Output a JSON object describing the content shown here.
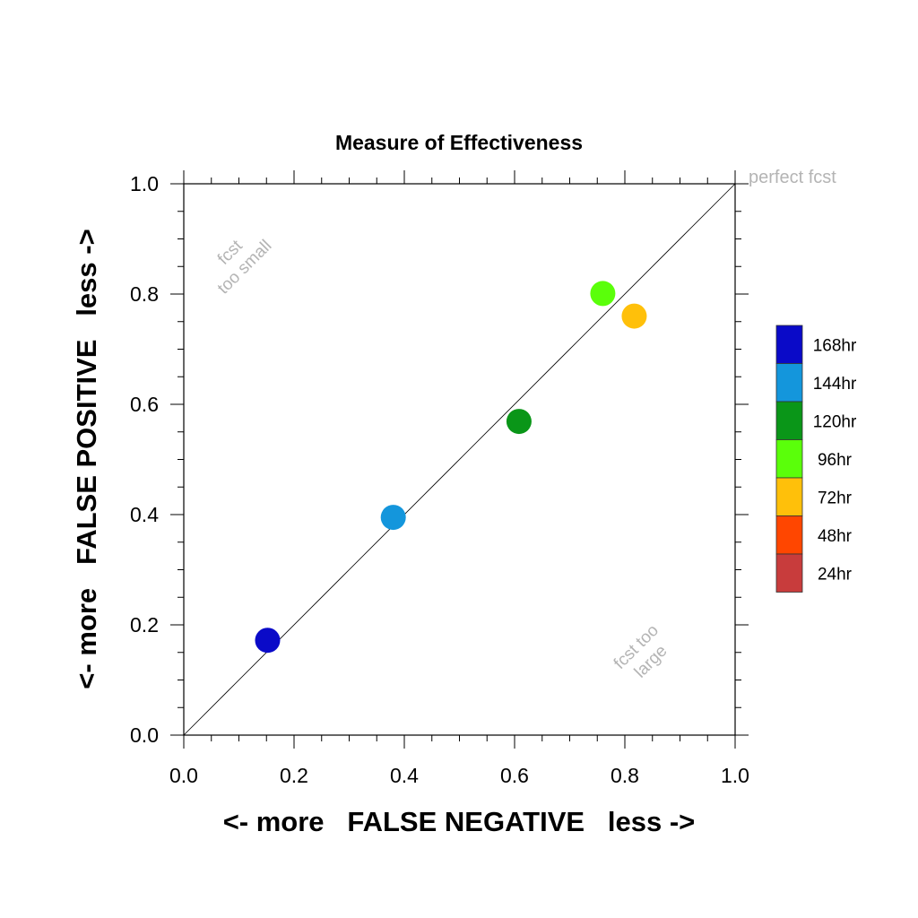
{
  "chart_data": {
    "type": "scatter",
    "title": "Measure of Effectiveness",
    "xlabel": "<- more   FALSE NEGATIVE   less ->",
    "ylabel": "<- more   FALSE POSITIVE   less ->",
    "xlim": [
      0,
      1
    ],
    "ylim": [
      0,
      1
    ],
    "x_ticks": [
      "0.0",
      "0.2",
      "0.4",
      "0.6",
      "0.8",
      "1.0"
    ],
    "y_ticks": [
      "0.0",
      "0.2",
      "0.4",
      "0.6",
      "0.8",
      "1.0"
    ],
    "grid": false,
    "legend_position": "right",
    "diagonal_line": true,
    "series": [
      {
        "name": "168hr",
        "color": "#0a0ac8",
        "x": 0.152,
        "y": 0.172
      },
      {
        "name": "144hr",
        "color": "#1496dc",
        "x": 0.38,
        "y": 0.395
      },
      {
        "name": "120hr",
        "color": "#0a9618",
        "x": 0.608,
        "y": 0.569
      },
      {
        "name": "96hr",
        "color": "#5aff0a",
        "x": 0.76,
        "y": 0.801
      },
      {
        "name": "72hr",
        "color": "#ffc00a",
        "x": 0.817,
        "y": 0.76
      }
    ],
    "legend": [
      {
        "label": "168hr",
        "color": "#0a0ac8"
      },
      {
        "label": "144hr",
        "color": "#1496dc"
      },
      {
        "label": "120hr",
        "color": "#0a9618"
      },
      {
        "label": "96hr",
        "color": "#5aff0a"
      },
      {
        "label": "72hr",
        "color": "#ffc00a"
      },
      {
        "label": "48hr",
        "color": "#ff4600"
      },
      {
        "label": "24hr",
        "color": "#c83c3c"
      }
    ],
    "annotations": {
      "perfect": "perfect fcst",
      "small_1": "fcst",
      "small_2": "too small",
      "large_1": "fcst too",
      "large_2": "large"
    }
  }
}
